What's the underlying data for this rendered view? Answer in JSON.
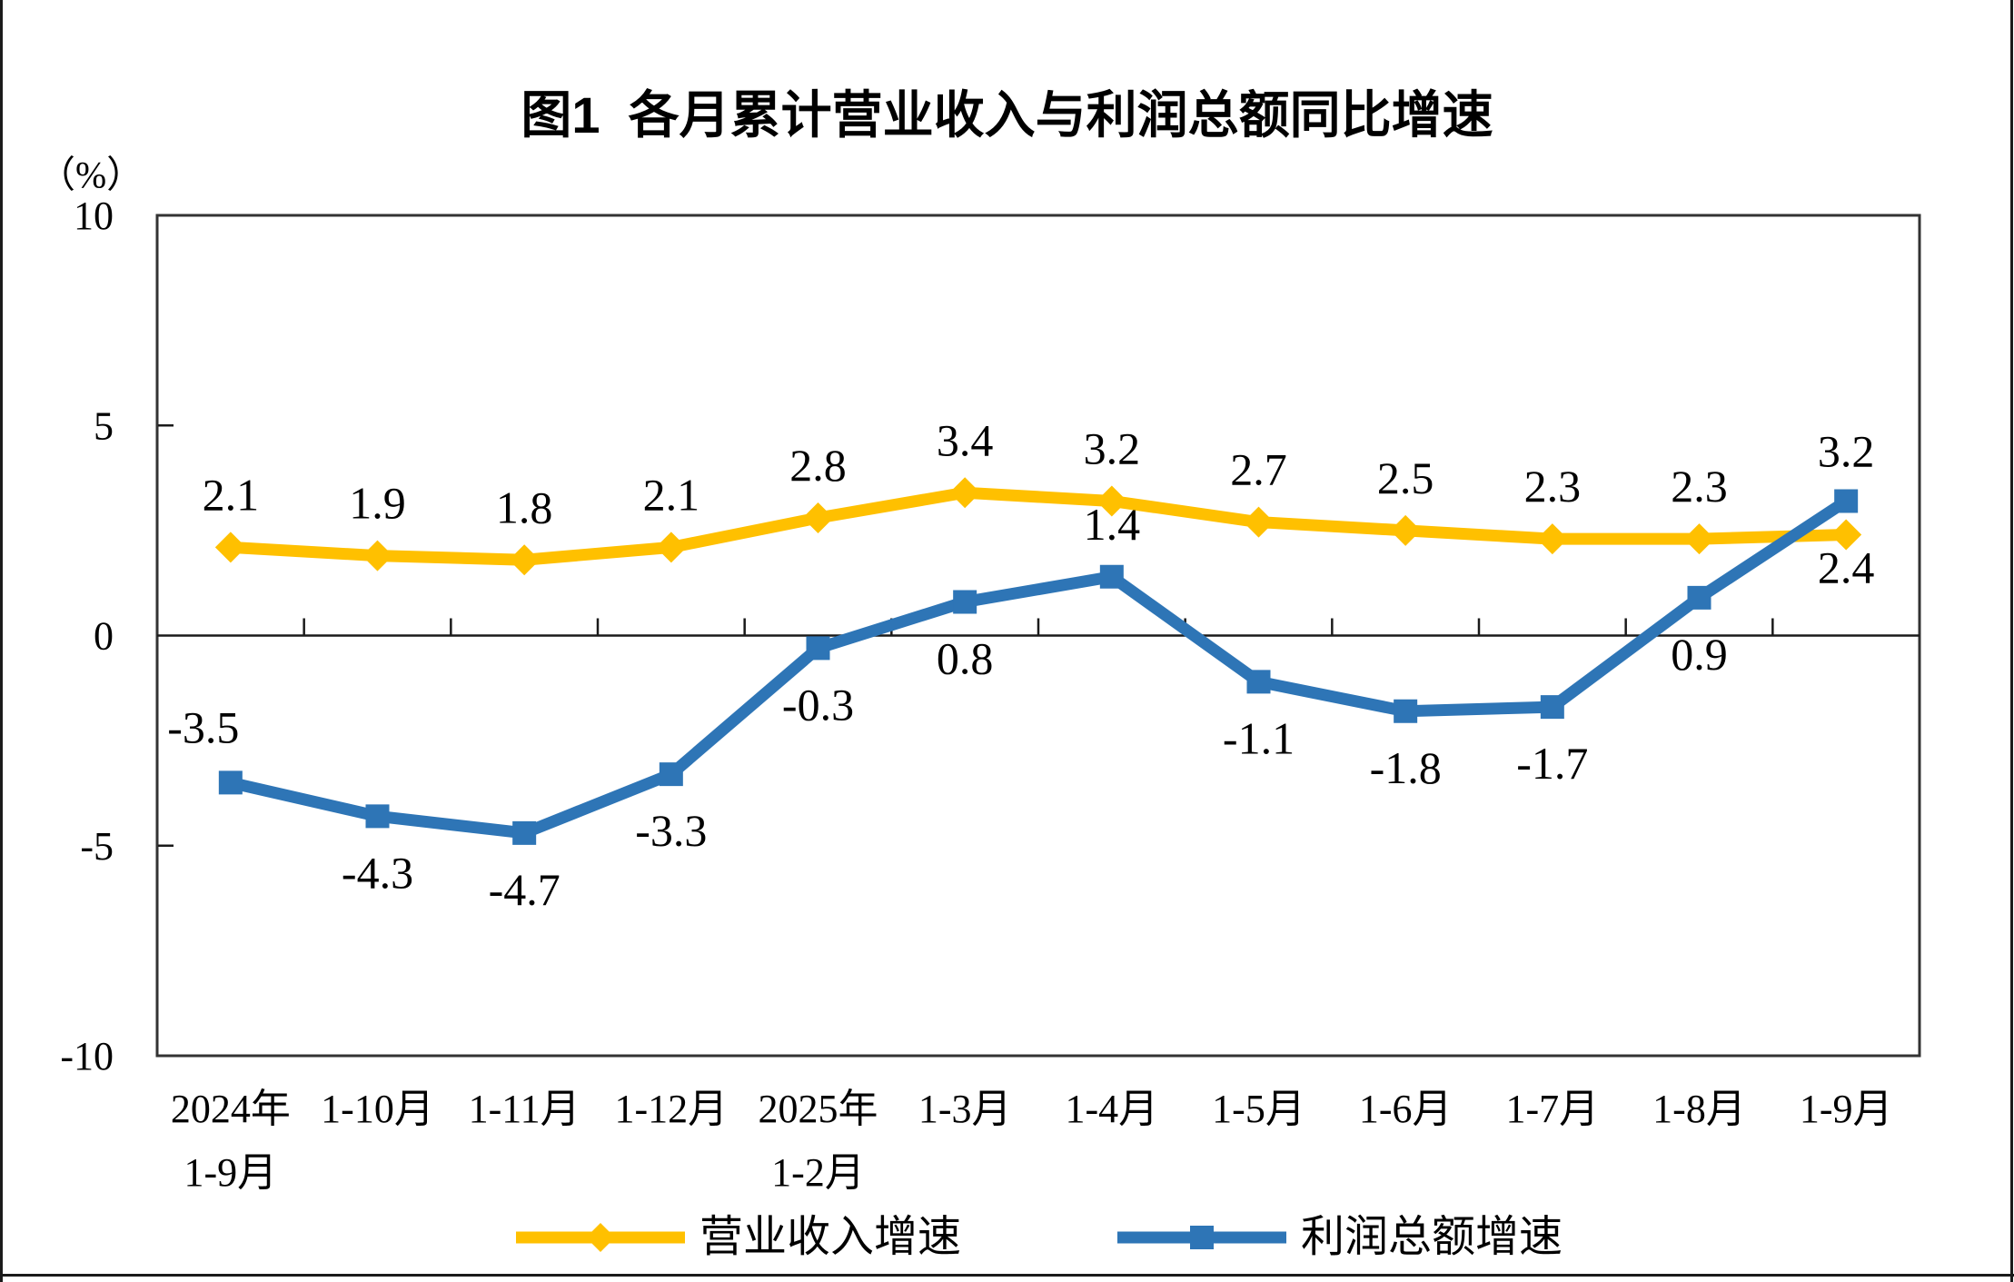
{
  "chart_data": {
    "type": "line",
    "title": "图1  各月累计营业收入与利润总额同比增速",
    "unit": "（%）",
    "categories": [
      "2024年\n1-9月",
      "1-10月",
      "1-11月",
      "1-12月",
      "2025年\n1-2月",
      "1-3月",
      "1-4月",
      "1-5月",
      "1-6月",
      "1-7月",
      "1-8月",
      "1-9月"
    ],
    "series": [
      {
        "name": "营业收入增速",
        "color": "#FFC000",
        "marker": "diamond",
        "values": [
          2.1,
          1.9,
          1.8,
          2.1,
          2.8,
          3.4,
          3.2,
          2.7,
          2.5,
          2.3,
          2.3,
          2.4
        ]
      },
      {
        "name": "利润总额增速",
        "color": "#2E75B6",
        "marker": "square",
        "values": [
          -3.5,
          -4.3,
          -4.7,
          -3.3,
          -0.3,
          0.8,
          1.4,
          -1.1,
          -1.8,
          -1.7,
          0.9,
          3.2
        ]
      }
    ],
    "y_axis": {
      "min": -10,
      "max": 10,
      "ticks": [
        10,
        5,
        0,
        -5,
        -10
      ]
    },
    "x_axis": {
      "tick_marks": "category-boundaries"
    },
    "legend_position": "bottom",
    "grid": false,
    "data_labels": true
  }
}
